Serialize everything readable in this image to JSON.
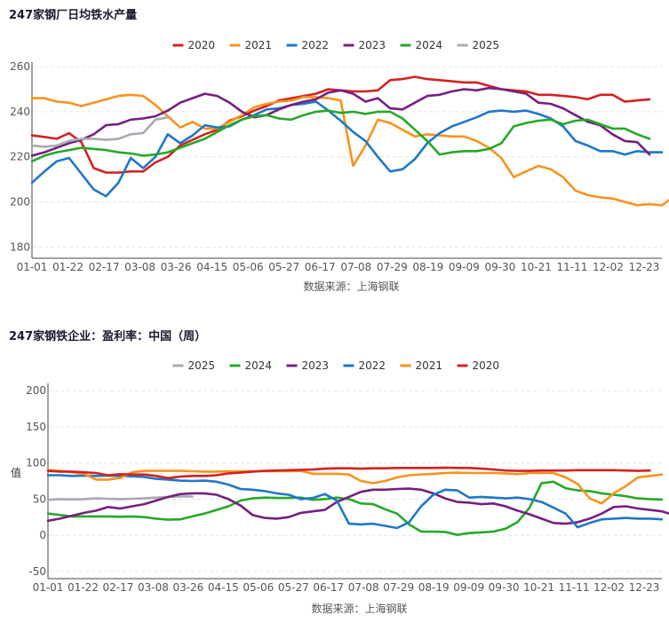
{
  "colors": {
    "2020": "#d42121",
    "2021": "#f7931e",
    "2022": "#1f77c9",
    "2023": "#76207f",
    "2024": "#26a826",
    "2025": "#a9a9b3"
  },
  "chart_data": [
    {
      "type": "line",
      "title": "247家钢厂日均铁水产量",
      "xlabel": "数据来源：上海钢联",
      "ylabel": "",
      "ylim": [
        175,
        262
      ],
      "yticks": [
        180,
        200,
        220,
        240,
        260
      ],
      "xticks": [
        "01-01",
        "01-22",
        "02-17",
        "03-08",
        "03-26",
        "04-15",
        "05-06",
        "05-27",
        "06-17",
        "07-08",
        "07-29",
        "08-19",
        "09-09",
        "09-30",
        "10-21",
        "11-11",
        "12-02",
        "12-23"
      ],
      "x_points": 52,
      "legend": [
        "2020",
        "2021",
        "2022",
        "2023",
        "2024",
        "2025"
      ],
      "series": [
        {
          "name": "2020",
          "values": [
            229.5,
            228.8,
            228,
            230.5,
            226.5,
            215,
            213,
            213,
            213.5,
            213.5,
            217.5,
            220,
            225,
            227.5,
            230,
            232,
            236,
            238,
            240.5,
            242.5,
            245,
            246,
            247,
            248,
            250,
            249.5,
            249,
            249,
            249.5,
            254,
            254.5,
            255.5,
            254.5,
            254,
            253.5,
            253,
            253,
            251.5,
            250,
            249.5,
            249,
            247.5,
            247.5,
            247,
            246.5,
            245.5,
            247.5,
            247.5,
            244.5,
            245,
            245.5
          ]
        },
        {
          "name": "2021",
          "values": [
            246,
            246,
            244.5,
            244,
            242.5,
            244,
            245.5,
            247,
            247.5,
            247,
            243,
            238,
            233,
            235.5,
            232.5,
            232.5,
            235.5,
            238.5,
            242,
            243.5,
            244.5,
            245,
            246.5,
            246.5,
            246,
            245,
            216,
            225,
            236.5,
            235,
            232,
            229,
            230,
            229.5,
            229,
            229,
            227,
            224,
            219.5,
            211,
            213.5,
            216,
            214.5,
            211,
            205,
            203,
            202,
            201.5,
            200,
            198.5,
            199,
            198.5,
            202.5
          ]
        },
        {
          "name": "2022",
          "values": [
            208.5,
            213.5,
            218,
            219.5,
            212.5,
            205.5,
            202.5,
            208.5,
            219.5,
            215,
            220,
            230,
            226,
            229.5,
            234,
            233,
            233.5,
            236.5,
            238.5,
            241,
            241.5,
            243,
            243.5,
            244.5,
            240.5,
            236,
            231,
            227,
            220,
            213.5,
            214.5,
            219,
            226,
            230.5,
            233.5,
            235.5,
            237.5,
            240,
            240.5,
            240,
            240.5,
            239,
            237,
            233.5,
            227,
            225,
            222.5,
            222.5,
            221,
            222.5,
            222,
            222
          ]
        },
        {
          "name": "2023",
          "values": [
            220.5,
            222,
            224,
            226,
            227.5,
            230,
            234,
            234.5,
            236.5,
            237,
            238,
            240.5,
            244,
            246,
            248,
            247,
            244,
            240,
            237.5,
            238.5,
            241,
            243,
            244.5,
            245.5,
            248.5,
            249.5,
            248,
            244.5,
            246,
            241.5,
            241,
            244,
            247,
            247.5,
            249,
            250,
            249.5,
            250.5,
            250,
            249,
            248,
            244,
            243.5,
            241.5,
            238.5,
            235.5,
            234,
            230,
            227,
            226.5,
            221
          ]
        },
        {
          "name": "2024",
          "values": [
            218,
            220.5,
            222,
            223,
            224,
            223.5,
            223,
            222,
            221.5,
            220.5,
            221,
            222,
            224,
            226,
            228,
            231,
            234,
            236.5,
            238,
            238.5,
            237,
            236.5,
            238.5,
            240,
            240.5,
            239.5,
            240,
            239,
            240,
            240,
            237,
            232,
            227,
            221,
            222,
            222.5,
            222.5,
            223.5,
            226,
            233.5,
            235,
            236,
            236.5,
            234.5,
            236,
            236.5,
            234.5,
            232.5,
            232.5,
            230,
            228
          ]
        },
        {
          "name": "2025",
          "values": [
            225,
            224.5,
            225,
            227,
            228,
            228,
            227.5,
            228,
            230,
            230.5,
            236.5,
            237.5
          ]
        }
      ]
    },
    {
      "type": "line",
      "title": "247家钢铁企业：盈利率：中国（周）",
      "xlabel": "数据来源：上海钢联",
      "ylabel": "值",
      "ylim": [
        -60,
        210
      ],
      "yticks": [
        -50,
        0,
        50,
        100,
        150,
        200
      ],
      "xticks": [
        "01-01",
        "01-22",
        "02-17",
        "03-08",
        "03-26",
        "04-15",
        "05-06",
        "05-27",
        "06-17",
        "07-08",
        "07-29",
        "08-19",
        "09-09",
        "09-30",
        "10-21",
        "11-11",
        "12-02",
        "12-23"
      ],
      "x_points": 52,
      "legend": [
        "2025",
        "2024",
        "2023",
        "2022",
        "2021",
        "2020"
      ],
      "series": [
        {
          "name": "2025",
          "values": [
            49,
            50,
            49.5,
            50,
            51,
            50.5,
            50,
            50.5,
            51,
            52,
            53,
            53.5,
            53.5
          ]
        },
        {
          "name": "2024",
          "values": [
            30,
            28,
            26,
            26,
            26,
            26,
            25.5,
            26,
            25,
            23,
            21.5,
            22,
            26,
            30,
            35,
            40,
            48,
            51,
            52,
            51.5,
            51.5,
            52,
            49,
            50,
            52,
            50,
            44,
            43,
            36,
            30,
            15,
            5,
            5,
            4.5,
            0.5,
            3,
            4,
            5,
            9,
            18,
            38,
            72,
            74,
            65,
            62,
            61,
            58,
            56,
            54,
            51,
            50,
            49.5
          ]
        },
        {
          "name": "2023",
          "values": [
            20,
            23,
            27,
            31,
            34,
            39,
            37,
            40,
            43,
            48,
            53,
            57,
            58,
            58,
            56,
            50,
            41,
            28,
            24,
            23,
            25,
            31,
            33,
            35,
            46,
            53,
            60,
            63,
            63,
            64,
            64.5,
            63,
            58,
            51,
            46,
            45,
            43,
            44,
            40,
            34,
            29,
            23,
            17,
            16,
            18,
            23,
            30,
            39,
            40,
            37,
            35,
            33,
            28
          ]
        },
        {
          "name": "2022",
          "values": [
            83,
            83,
            82,
            82.5,
            82,
            82.5,
            82,
            81.5,
            80.5,
            78,
            77,
            75.5,
            75,
            75.5,
            74,
            70,
            64,
            63,
            61,
            58,
            56,
            50,
            51.5,
            57,
            48,
            16,
            15,
            16,
            13,
            10,
            18,
            40,
            56,
            63,
            62,
            52,
            53,
            52,
            51,
            52,
            50,
            46,
            38,
            30,
            11,
            17,
            22,
            23,
            24,
            23,
            23,
            22
          ]
        },
        {
          "name": "2021",
          "values": [
            90,
            89,
            87,
            85,
            77,
            77,
            79,
            87,
            89,
            89,
            89,
            89,
            88.5,
            88,
            88,
            88.5,
            88.5,
            88.5,
            88.5,
            88.5,
            88.5,
            89,
            85,
            85,
            85,
            84,
            75,
            72,
            75,
            80,
            83,
            84,
            85,
            86,
            86.5,
            86,
            86,
            86,
            85.5,
            84.5,
            86,
            86,
            86,
            80,
            71,
            51,
            44,
            58,
            68,
            80,
            82,
            84
          ]
        },
        {
          "name": "2020",
          "values": [
            89,
            88,
            88,
            87,
            86,
            83,
            84.5,
            84,
            84,
            82,
            79,
            81,
            82,
            82,
            83,
            85.5,
            86.5,
            88,
            89,
            89.5,
            90,
            90.5,
            91,
            92,
            92.5,
            92.5,
            92,
            92.5,
            92.5,
            93,
            93,
            93,
            93,
            93.5,
            93,
            93,
            92,
            91,
            89.5,
            89,
            89,
            89.5,
            89.5,
            89.5,
            90,
            90,
            90,
            90,
            89.5,
            89,
            89.5
          ]
        }
      ]
    }
  ]
}
